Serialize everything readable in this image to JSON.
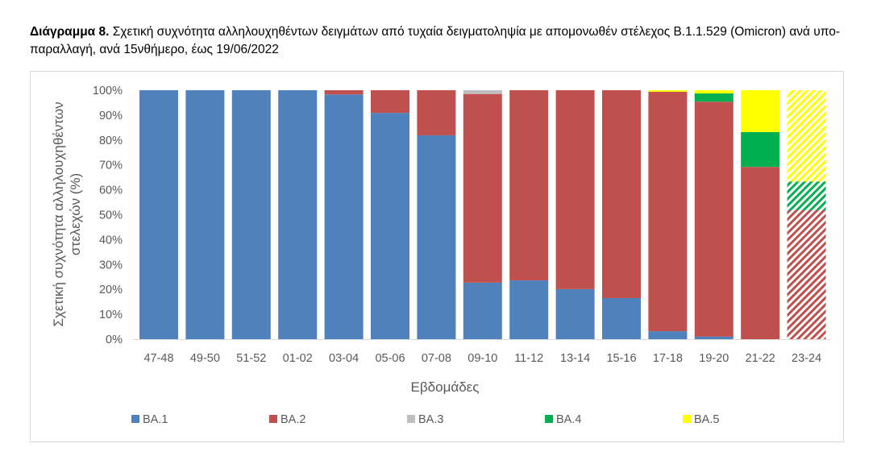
{
  "title": {
    "bold": "Διάγραμμα 8.",
    "rest": " Σχετική συχνότητα αλληλουχηθέντων δειγμάτων από τυχαία δειγματοληψία με απομονωθέν στέλεχος B.1.1.529 (Omicron) ανά υπο-παραλλαγή, ανά 15νθήμερο, έως 19/06/2022"
  },
  "chart_data": {
    "type": "bar",
    "stacked": true,
    "title": "",
    "xlabel": "Εβδομάδες",
    "ylabel": [
      "Σχετική συχνότητα αλληλουχηθέντων",
      "στελεχών (%)"
    ],
    "ylim": [
      0,
      100
    ],
    "yticks": [
      "0%",
      "10%",
      "20%",
      "30%",
      "40%",
      "50%",
      "60%",
      "70%",
      "80%",
      "90%",
      "100%"
    ],
    "categories": [
      "47-48",
      "49-50",
      "51-52",
      "01-02",
      "03-04",
      "05-06",
      "07-08",
      "09-10",
      "11-12",
      "13-14",
      "15-16",
      "17-18",
      "19-20",
      "21-22",
      "23-24"
    ],
    "hatched_categories": [
      "23-24"
    ],
    "legend_position": "bottom",
    "series": [
      {
        "name": "BA.1",
        "color": "#4f81bd",
        "values": [
          100,
          100,
          100,
          100,
          98.3,
          90.9,
          81.9,
          22.7,
          23.6,
          20.1,
          16.5,
          3.2,
          1.0,
          0,
          0
        ]
      },
      {
        "name": "BA.2",
        "color": "#c0504d",
        "values": [
          0,
          0,
          0,
          0,
          1.7,
          9.1,
          18.1,
          75.8,
          76.4,
          79.9,
          83.5,
          96.2,
          94.4,
          69.2,
          51.8
        ]
      },
      {
        "name": "BA.3",
        "color": "#bfbfbf",
        "values": [
          0,
          0,
          0,
          0,
          0,
          0,
          0,
          1.5,
          0,
          0,
          0,
          0,
          0,
          0,
          0
        ]
      },
      {
        "name": "BA.4",
        "color": "#00b050",
        "values": [
          0,
          0,
          0,
          0,
          0,
          0,
          0,
          0,
          0,
          0,
          0,
          0,
          3.3,
          14.0,
          11.5
        ]
      },
      {
        "name": "BA.5",
        "color": "#ffff00",
        "values": [
          0,
          0,
          0,
          0,
          0,
          0,
          0,
          0,
          0,
          0,
          0,
          0.6,
          1.3,
          16.8,
          36.7
        ]
      }
    ]
  }
}
